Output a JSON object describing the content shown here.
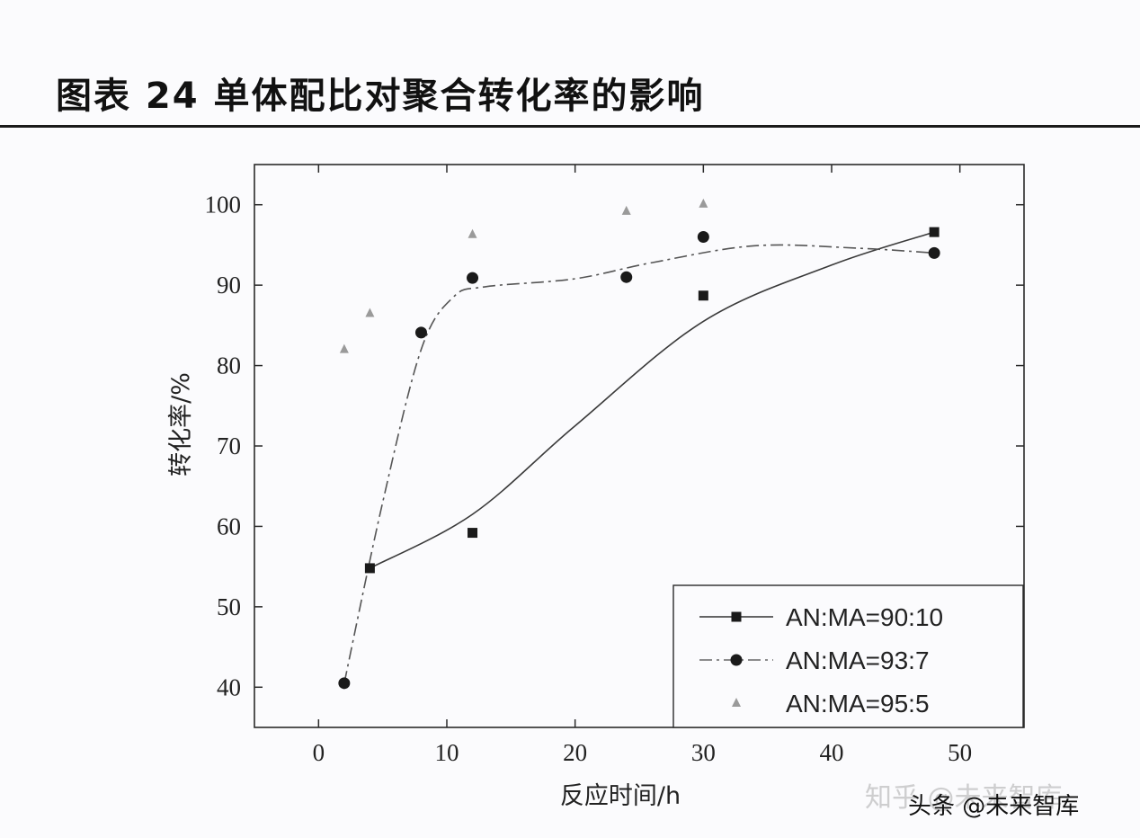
{
  "header": {
    "title": "图表 24 单体配比对聚合转化率的影响"
  },
  "watermarks": {
    "zhihu": "知乎 @未来智库",
    "toutiao": "头条 @未来智库"
  },
  "chart_data": {
    "type": "scatter",
    "title": "",
    "xlabel": "反应时间/h",
    "ylabel": "转化率/%",
    "xlim": [
      -5,
      55
    ],
    "ylim": [
      35,
      105
    ],
    "xticks": [
      0,
      10,
      20,
      30,
      40,
      50
    ],
    "yticks": [
      40,
      50,
      60,
      70,
      80,
      90,
      100
    ],
    "grid": false,
    "legend_position": "bottom-right",
    "series": [
      {
        "name": "AN:MA=90:10",
        "marker": "square",
        "line": "solid",
        "color": "#1a1a1a",
        "x": [
          4,
          12,
          30,
          48
        ],
        "y": [
          54.8,
          59.2,
          88.7,
          96.6
        ]
      },
      {
        "name": "AN:MA=93:7",
        "marker": "circle",
        "line": "dash-dot",
        "color": "#1a1a1a",
        "x": [
          2,
          8,
          12,
          24,
          30,
          48
        ],
        "y": [
          40.5,
          84.1,
          90.9,
          91.0,
          96.0,
          94.0
        ]
      },
      {
        "name": "AN:MA=95:5",
        "marker": "triangle",
        "line": "none",
        "color": "#9a9a9a",
        "x": [
          2,
          4,
          12,
          24,
          30
        ],
        "y": [
          82.0,
          86.5,
          96.3,
          99.2,
          100.1
        ]
      }
    ]
  }
}
